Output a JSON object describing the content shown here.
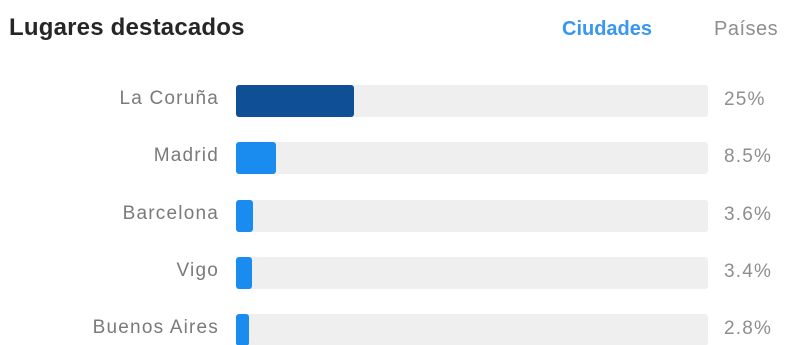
{
  "header": {
    "title": "Lugares destacados",
    "tabs": [
      {
        "label": "Ciudades",
        "active": true
      },
      {
        "label": "Países",
        "active": false
      }
    ]
  },
  "colors": {
    "accent": "#3897f0",
    "top_bar": "#0e4f96",
    "bar": "#1a8cf0",
    "track": "#efefef",
    "label": "#7a7a7a",
    "title": "#262626"
  },
  "chart_data": {
    "type": "bar",
    "orientation": "horizontal",
    "categories": [
      "La Coruña",
      "Madrid",
      "Barcelona",
      "Vigo",
      "Buenos Aires"
    ],
    "values": [
      25,
      8.5,
      3.6,
      3.4,
      2.8
    ],
    "value_labels": [
      "25%",
      "8.5%",
      "3.6%",
      "3.4%",
      "2.8%"
    ],
    "unit": "%",
    "xlim": [
      0,
      100
    ],
    "grid": false,
    "legend": "none"
  }
}
